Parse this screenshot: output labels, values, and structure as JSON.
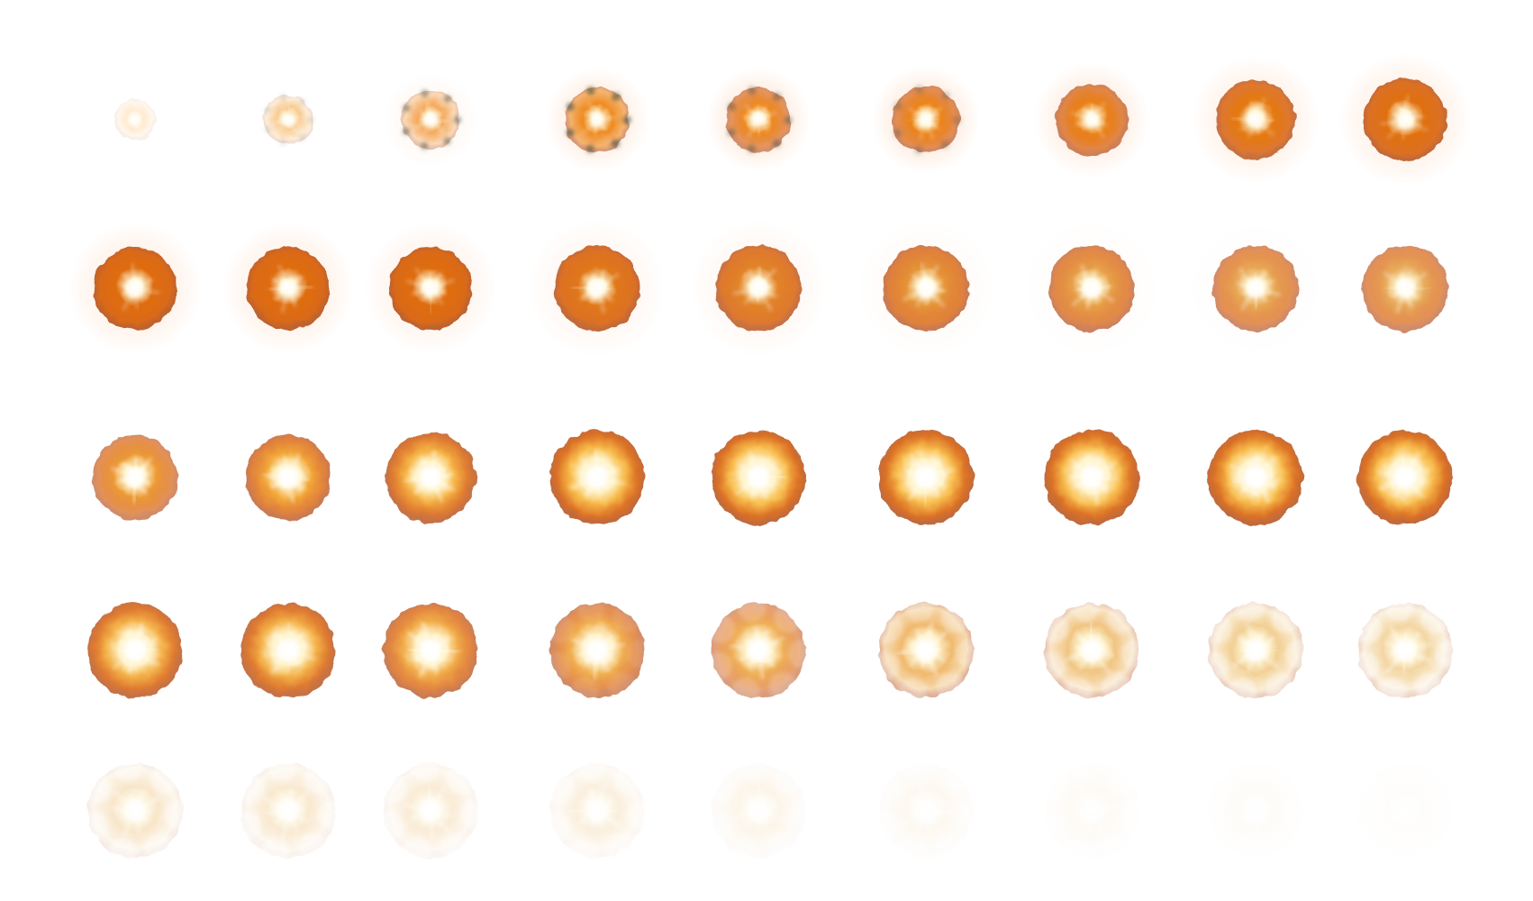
{
  "sprite_sheet": {
    "frames": [
      {
        "scale": 0.45,
        "halo": 0.0,
        "smoke": 0.0,
        "core": 0.85,
        "rim": 0.15,
        "opacity": 0.55,
        "ring": 0.0,
        "hue": "#ffd9a8"
      },
      {
        "scale": 0.55,
        "halo": 0.0,
        "smoke": 0.25,
        "core": 0.85,
        "rim": 0.25,
        "opacity": 0.75,
        "ring": 0.0,
        "hue": "#f7b96b"
      },
      {
        "scale": 0.65,
        "halo": 0.25,
        "smoke": 0.7,
        "core": 0.75,
        "rim": 0.4,
        "opacity": 0.9,
        "ring": 0.0,
        "hue": "#f4a04a"
      },
      {
        "scale": 0.72,
        "halo": 0.55,
        "smoke": 0.8,
        "core": 0.55,
        "rim": 0.6,
        "opacity": 1.0,
        "ring": 0.0,
        "hue": "#ee8a1f"
      },
      {
        "scale": 0.72,
        "halo": 0.6,
        "smoke": 0.55,
        "core": 0.55,
        "rim": 0.65,
        "opacity": 1.0,
        "ring": 0.0,
        "hue": "#ee8a1f"
      },
      {
        "scale": 0.75,
        "halo": 0.6,
        "smoke": 0.35,
        "core": 0.55,
        "rim": 0.7,
        "opacity": 1.0,
        "ring": 0.0,
        "hue": "#ec8418"
      },
      {
        "scale": 0.8,
        "halo": 0.55,
        "smoke": 0.0,
        "core": 0.55,
        "rim": 0.75,
        "opacity": 1.0,
        "ring": 0.0,
        "hue": "#ea8015"
      },
      {
        "scale": 0.88,
        "halo": 0.5,
        "smoke": 0.0,
        "core": 0.55,
        "rim": 0.85,
        "opacity": 1.0,
        "ring": 0.0,
        "hue": "#e57a12"
      },
      {
        "scale": 0.92,
        "halo": 0.5,
        "smoke": 0.0,
        "core": 0.55,
        "rim": 0.9,
        "opacity": 1.0,
        "ring": 0.0,
        "hue": "#e0700f"
      },
      {
        "scale": 0.92,
        "halo": 0.5,
        "smoke": 0.0,
        "core": 0.65,
        "rim": 0.95,
        "opacity": 1.0,
        "ring": 0.0,
        "hue": "#df6d10"
      },
      {
        "scale": 0.92,
        "halo": 0.45,
        "smoke": 0.0,
        "core": 0.65,
        "rim": 0.95,
        "opacity": 1.0,
        "ring": 0.0,
        "hue": "#df6d10"
      },
      {
        "scale": 0.92,
        "halo": 0.4,
        "smoke": 0.0,
        "core": 0.65,
        "rim": 0.95,
        "opacity": 1.0,
        "ring": 0.0,
        "hue": "#df6d10"
      },
      {
        "scale": 0.95,
        "halo": 0.3,
        "smoke": 0.0,
        "core": 0.7,
        "rim": 0.9,
        "opacity": 1.0,
        "ring": 0.0,
        "hue": "#e0781a"
      },
      {
        "scale": 0.95,
        "halo": 0.25,
        "smoke": 0.0,
        "core": 0.75,
        "rim": 0.85,
        "opacity": 1.0,
        "ring": 0.0,
        "hue": "#e28428"
      },
      {
        "scale": 0.95,
        "halo": 0.15,
        "smoke": 0.0,
        "core": 0.8,
        "rim": 0.8,
        "opacity": 1.0,
        "ring": 0.0,
        "hue": "#e59437"
      },
      {
        "scale": 0.95,
        "halo": 0.1,
        "smoke": 0.0,
        "core": 0.85,
        "rim": 0.75,
        "opacity": 1.0,
        "ring": 0.0,
        "hue": "#e7a048"
      },
      {
        "scale": 0.95,
        "halo": 0.05,
        "smoke": 0.0,
        "core": 0.85,
        "rim": 0.7,
        "opacity": 1.0,
        "ring": 0.0,
        "hue": "#e8a855"
      },
      {
        "scale": 0.95,
        "halo": 0.0,
        "smoke": 0.0,
        "core": 0.85,
        "rim": 0.7,
        "opacity": 1.0,
        "ring": 0.0,
        "hue": "#e8ac5c"
      },
      {
        "scale": 0.95,
        "halo": 0.0,
        "smoke": 0.0,
        "core": 0.95,
        "rim": 0.7,
        "opacity": 1.0,
        "ring": 0.2,
        "hue": "#ec9a34"
      },
      {
        "scale": 0.95,
        "halo": 0.0,
        "smoke": 0.0,
        "core": 1.0,
        "rim": 0.8,
        "opacity": 1.0,
        "ring": 0.35,
        "hue": "#f3a83a"
      },
      {
        "scale": 1.0,
        "halo": 0.0,
        "smoke": 0.0,
        "core": 1.0,
        "rim": 0.85,
        "opacity": 1.0,
        "ring": 0.45,
        "hue": "#f6b446"
      },
      {
        "scale": 1.05,
        "halo": 0.0,
        "smoke": 0.0,
        "core": 1.0,
        "rim": 0.9,
        "opacity": 1.0,
        "ring": 0.55,
        "hue": "#f8bc4c"
      },
      {
        "scale": 1.05,
        "halo": 0.0,
        "smoke": 0.0,
        "core": 1.0,
        "rim": 0.9,
        "opacity": 1.0,
        "ring": 0.6,
        "hue": "#f8bd4e"
      },
      {
        "scale": 1.05,
        "halo": 0.0,
        "smoke": 0.0,
        "core": 1.0,
        "rim": 0.9,
        "opacity": 1.0,
        "ring": 0.6,
        "hue": "#f8bd4e"
      },
      {
        "scale": 1.05,
        "halo": 0.0,
        "smoke": 0.0,
        "core": 1.0,
        "rim": 0.9,
        "opacity": 1.0,
        "ring": 0.6,
        "hue": "#f8bd4e"
      },
      {
        "scale": 1.05,
        "halo": 0.0,
        "smoke": 0.0,
        "core": 1.0,
        "rim": 0.9,
        "opacity": 1.0,
        "ring": 0.6,
        "hue": "#f8bd4e"
      },
      {
        "scale": 1.05,
        "halo": 0.0,
        "smoke": 0.0,
        "core": 1.0,
        "rim": 0.9,
        "opacity": 1.0,
        "ring": 0.6,
        "hue": "#f8bd4e"
      },
      {
        "scale": 1.05,
        "halo": 0.0,
        "smoke": 0.0,
        "core": 1.0,
        "rim": 0.85,
        "opacity": 1.0,
        "ring": 0.55,
        "hue": "#f4b24a"
      },
      {
        "scale": 1.05,
        "halo": 0.0,
        "smoke": 0.0,
        "core": 1.0,
        "rim": 0.85,
        "opacity": 1.0,
        "ring": 0.55,
        "hue": "#f4b24a"
      },
      {
        "scale": 1.05,
        "halo": 0.0,
        "smoke": 0.0,
        "core": 1.0,
        "rim": 0.8,
        "opacity": 0.98,
        "ring": 0.5,
        "hue": "#f2ad48"
      },
      {
        "scale": 1.05,
        "halo": 0.0,
        "smoke": 0.1,
        "core": 1.0,
        "rim": 0.75,
        "opacity": 0.95,
        "ring": 0.45,
        "hue": "#f0aa46"
      },
      {
        "scale": 1.05,
        "halo": 0.0,
        "smoke": 0.2,
        "core": 1.0,
        "rim": 0.65,
        "opacity": 0.92,
        "ring": 0.35,
        "hue": "#eeaa4a"
      },
      {
        "scale": 1.05,
        "halo": 0.0,
        "smoke": 0.3,
        "core": 1.0,
        "rim": 0.55,
        "opacity": 0.88,
        "ring": 0.3,
        "hue": "#eeb05a"
      },
      {
        "scale": 1.05,
        "halo": 0.0,
        "smoke": 0.35,
        "core": 1.0,
        "rim": 0.45,
        "opacity": 0.82,
        "ring": 0.25,
        "hue": "#eeb866"
      },
      {
        "scale": 1.05,
        "halo": 0.0,
        "smoke": 0.4,
        "core": 1.0,
        "rim": 0.4,
        "opacity": 0.75,
        "ring": 0.2,
        "hue": "#eec070"
      },
      {
        "scale": 1.05,
        "halo": 0.0,
        "smoke": 0.45,
        "core": 1.0,
        "rim": 0.35,
        "opacity": 0.7,
        "ring": 0.15,
        "hue": "#eec47a"
      },
      {
        "scale": 1.05,
        "halo": 0.0,
        "smoke": 0.45,
        "core": 1.0,
        "rim": 0.25,
        "opacity": 0.45,
        "ring": 0.1,
        "hue": "#f0c88a"
      },
      {
        "scale": 1.05,
        "halo": 0.0,
        "smoke": 0.45,
        "core": 1.0,
        "rim": 0.2,
        "opacity": 0.4,
        "ring": 0.08,
        "hue": "#f0c88a"
      },
      {
        "scale": 1.05,
        "halo": 0.0,
        "smoke": 0.45,
        "core": 1.0,
        "rim": 0.18,
        "opacity": 0.35,
        "ring": 0.06,
        "hue": "#f0c88a"
      },
      {
        "scale": 1.05,
        "halo": 0.0,
        "smoke": 0.45,
        "core": 1.0,
        "rim": 0.15,
        "opacity": 0.28,
        "ring": 0.05,
        "hue": "#f0c88a"
      },
      {
        "scale": 1.05,
        "halo": 0.0,
        "smoke": 0.4,
        "core": 1.0,
        "rim": 0.1,
        "opacity": 0.18,
        "ring": 0.03,
        "hue": "#f0c88a"
      },
      {
        "scale": 1.05,
        "halo": 0.0,
        "smoke": 0.35,
        "core": 1.0,
        "rim": 0.08,
        "opacity": 0.12,
        "ring": 0.02,
        "hue": "#f0c88a"
      },
      {
        "scale": 1.05,
        "halo": 0.0,
        "smoke": 0.3,
        "core": 1.0,
        "rim": 0.06,
        "opacity": 0.08,
        "ring": 0.01,
        "hue": "#f0c88a"
      },
      {
        "scale": 1.05,
        "halo": 0.0,
        "smoke": 0.25,
        "core": 1.0,
        "rim": 0.05,
        "opacity": 0.05,
        "ring": 0.0,
        "hue": "#f0c88a"
      },
      {
        "scale": 1.05,
        "halo": 0.0,
        "smoke": 0.2,
        "core": 1.0,
        "rim": 0.04,
        "opacity": 0.03,
        "ring": 0.0,
        "hue": "#f0c88a"
      }
    ],
    "colors": {
      "background": "#ffffff",
      "rim_dark": "#b2480f",
      "rim_mid": "#d8620c",
      "hot_core": "#ffffff",
      "bright": "#fff3c9",
      "halo": "#ffc9a3",
      "smoke": "#4b4f3d"
    },
    "icon": "explosion-sprite-icon"
  }
}
